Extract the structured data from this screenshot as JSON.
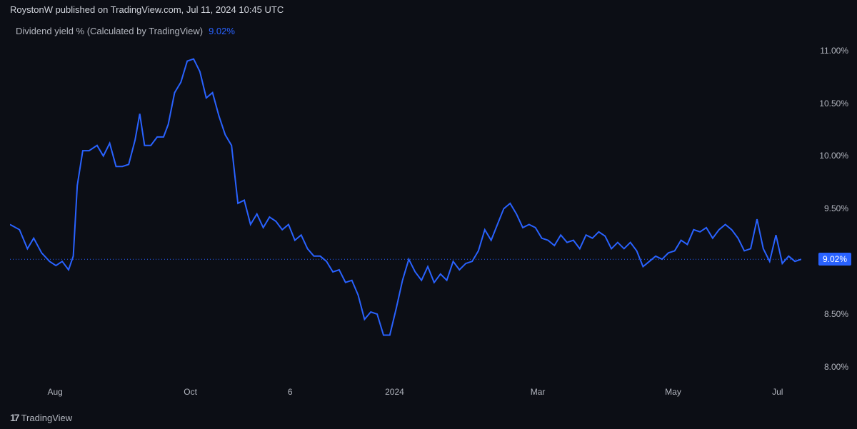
{
  "header": {
    "byline": "RoystonW published on TradingView.com, Jul 11, 2024 10:45 UTC"
  },
  "legend": {
    "title": "Dividend yield % (Calculated by TradingView)",
    "value": "9.02%",
    "value_color": "#2962ff"
  },
  "footer": {
    "brand": "TradingView"
  },
  "chart": {
    "type": "line",
    "background_color": "#0c0e15",
    "text_color": "#b2b5be",
    "line_color": "#2962ff",
    "line_width": 2,
    "tick_fontsize": 12,
    "legend_fontsize": 13,
    "ylim": [
      7.85,
      11.1
    ],
    "yticks": [
      8.0,
      8.5,
      9.0,
      9.5,
      10.0,
      10.5,
      11.0
    ],
    "ytick_labels": [
      "8.00%",
      "8.50%",
      "9.00%",
      "9.50%",
      "10.00%",
      "10.50%",
      "11.00%"
    ],
    "current_value": 9.02,
    "current_label": "9.02%",
    "current_tag_bg": "#2962ff",
    "current_tag_fg": "#ffffff",
    "xtick_positions": [
      0.057,
      0.228,
      0.354,
      0.486,
      0.667,
      0.838,
      0.97
    ],
    "xtick_labels": [
      "Aug",
      "Oct",
      "6",
      "2024",
      "Mar",
      "May",
      "Jul"
    ],
    "series": [
      [
        0.0,
        9.35
      ],
      [
        0.012,
        9.3
      ],
      [
        0.022,
        9.12
      ],
      [
        0.03,
        9.22
      ],
      [
        0.04,
        9.08
      ],
      [
        0.05,
        9.0
      ],
      [
        0.058,
        8.96
      ],
      [
        0.066,
        9.0
      ],
      [
        0.074,
        8.92
      ],
      [
        0.08,
        9.05
      ],
      [
        0.085,
        9.72
      ],
      [
        0.092,
        10.05
      ],
      [
        0.1,
        10.05
      ],
      [
        0.11,
        10.1
      ],
      [
        0.118,
        10.0
      ],
      [
        0.126,
        10.12
      ],
      [
        0.134,
        9.9
      ],
      [
        0.142,
        9.9
      ],
      [
        0.15,
        9.92
      ],
      [
        0.158,
        10.15
      ],
      [
        0.164,
        10.4
      ],
      [
        0.17,
        10.1
      ],
      [
        0.178,
        10.1
      ],
      [
        0.186,
        10.18
      ],
      [
        0.194,
        10.18
      ],
      [
        0.2,
        10.3
      ],
      [
        0.208,
        10.6
      ],
      [
        0.216,
        10.7
      ],
      [
        0.224,
        10.9
      ],
      [
        0.232,
        10.92
      ],
      [
        0.24,
        10.8
      ],
      [
        0.248,
        10.55
      ],
      [
        0.256,
        10.6
      ],
      [
        0.264,
        10.38
      ],
      [
        0.272,
        10.2
      ],
      [
        0.28,
        10.1
      ],
      [
        0.288,
        9.55
      ],
      [
        0.296,
        9.58
      ],
      [
        0.304,
        9.35
      ],
      [
        0.312,
        9.45
      ],
      [
        0.32,
        9.32
      ],
      [
        0.328,
        9.42
      ],
      [
        0.336,
        9.38
      ],
      [
        0.344,
        9.3
      ],
      [
        0.352,
        9.35
      ],
      [
        0.36,
        9.2
      ],
      [
        0.368,
        9.25
      ],
      [
        0.376,
        9.12
      ],
      [
        0.384,
        9.05
      ],
      [
        0.392,
        9.05
      ],
      [
        0.4,
        9.0
      ],
      [
        0.408,
        8.9
      ],
      [
        0.416,
        8.92
      ],
      [
        0.424,
        8.8
      ],
      [
        0.432,
        8.82
      ],
      [
        0.44,
        8.68
      ],
      [
        0.448,
        8.45
      ],
      [
        0.456,
        8.52
      ],
      [
        0.464,
        8.5
      ],
      [
        0.472,
        8.3
      ],
      [
        0.48,
        8.3
      ],
      [
        0.488,
        8.55
      ],
      [
        0.496,
        8.82
      ],
      [
        0.504,
        9.02
      ],
      [
        0.512,
        8.9
      ],
      [
        0.52,
        8.82
      ],
      [
        0.528,
        8.95
      ],
      [
        0.536,
        8.8
      ],
      [
        0.544,
        8.88
      ],
      [
        0.552,
        8.82
      ],
      [
        0.56,
        9.0
      ],
      [
        0.568,
        8.92
      ],
      [
        0.576,
        8.98
      ],
      [
        0.584,
        9.0
      ],
      [
        0.592,
        9.1
      ],
      [
        0.6,
        9.3
      ],
      [
        0.608,
        9.2
      ],
      [
        0.616,
        9.35
      ],
      [
        0.624,
        9.5
      ],
      [
        0.632,
        9.55
      ],
      [
        0.64,
        9.45
      ],
      [
        0.648,
        9.32
      ],
      [
        0.656,
        9.35
      ],
      [
        0.664,
        9.32
      ],
      [
        0.672,
        9.22
      ],
      [
        0.68,
        9.2
      ],
      [
        0.688,
        9.15
      ],
      [
        0.696,
        9.25
      ],
      [
        0.704,
        9.18
      ],
      [
        0.712,
        9.2
      ],
      [
        0.72,
        9.12
      ],
      [
        0.728,
        9.25
      ],
      [
        0.736,
        9.22
      ],
      [
        0.744,
        9.28
      ],
      [
        0.752,
        9.24
      ],
      [
        0.76,
        9.12
      ],
      [
        0.768,
        9.18
      ],
      [
        0.776,
        9.12
      ],
      [
        0.784,
        9.18
      ],
      [
        0.792,
        9.1
      ],
      [
        0.8,
        8.95
      ],
      [
        0.808,
        9.0
      ],
      [
        0.816,
        9.05
      ],
      [
        0.824,
        9.02
      ],
      [
        0.832,
        9.08
      ],
      [
        0.84,
        9.1
      ],
      [
        0.848,
        9.2
      ],
      [
        0.856,
        9.16
      ],
      [
        0.864,
        9.3
      ],
      [
        0.872,
        9.28
      ],
      [
        0.88,
        9.32
      ],
      [
        0.888,
        9.22
      ],
      [
        0.896,
        9.3
      ],
      [
        0.904,
        9.35
      ],
      [
        0.912,
        9.3
      ],
      [
        0.92,
        9.22
      ],
      [
        0.928,
        9.1
      ],
      [
        0.936,
        9.12
      ],
      [
        0.944,
        9.4
      ],
      [
        0.952,
        9.12
      ],
      [
        0.96,
        9.0
      ],
      [
        0.968,
        9.25
      ],
      [
        0.976,
        8.98
      ],
      [
        0.984,
        9.05
      ],
      [
        0.992,
        9.0
      ],
      [
        1.0,
        9.02
      ]
    ]
  }
}
